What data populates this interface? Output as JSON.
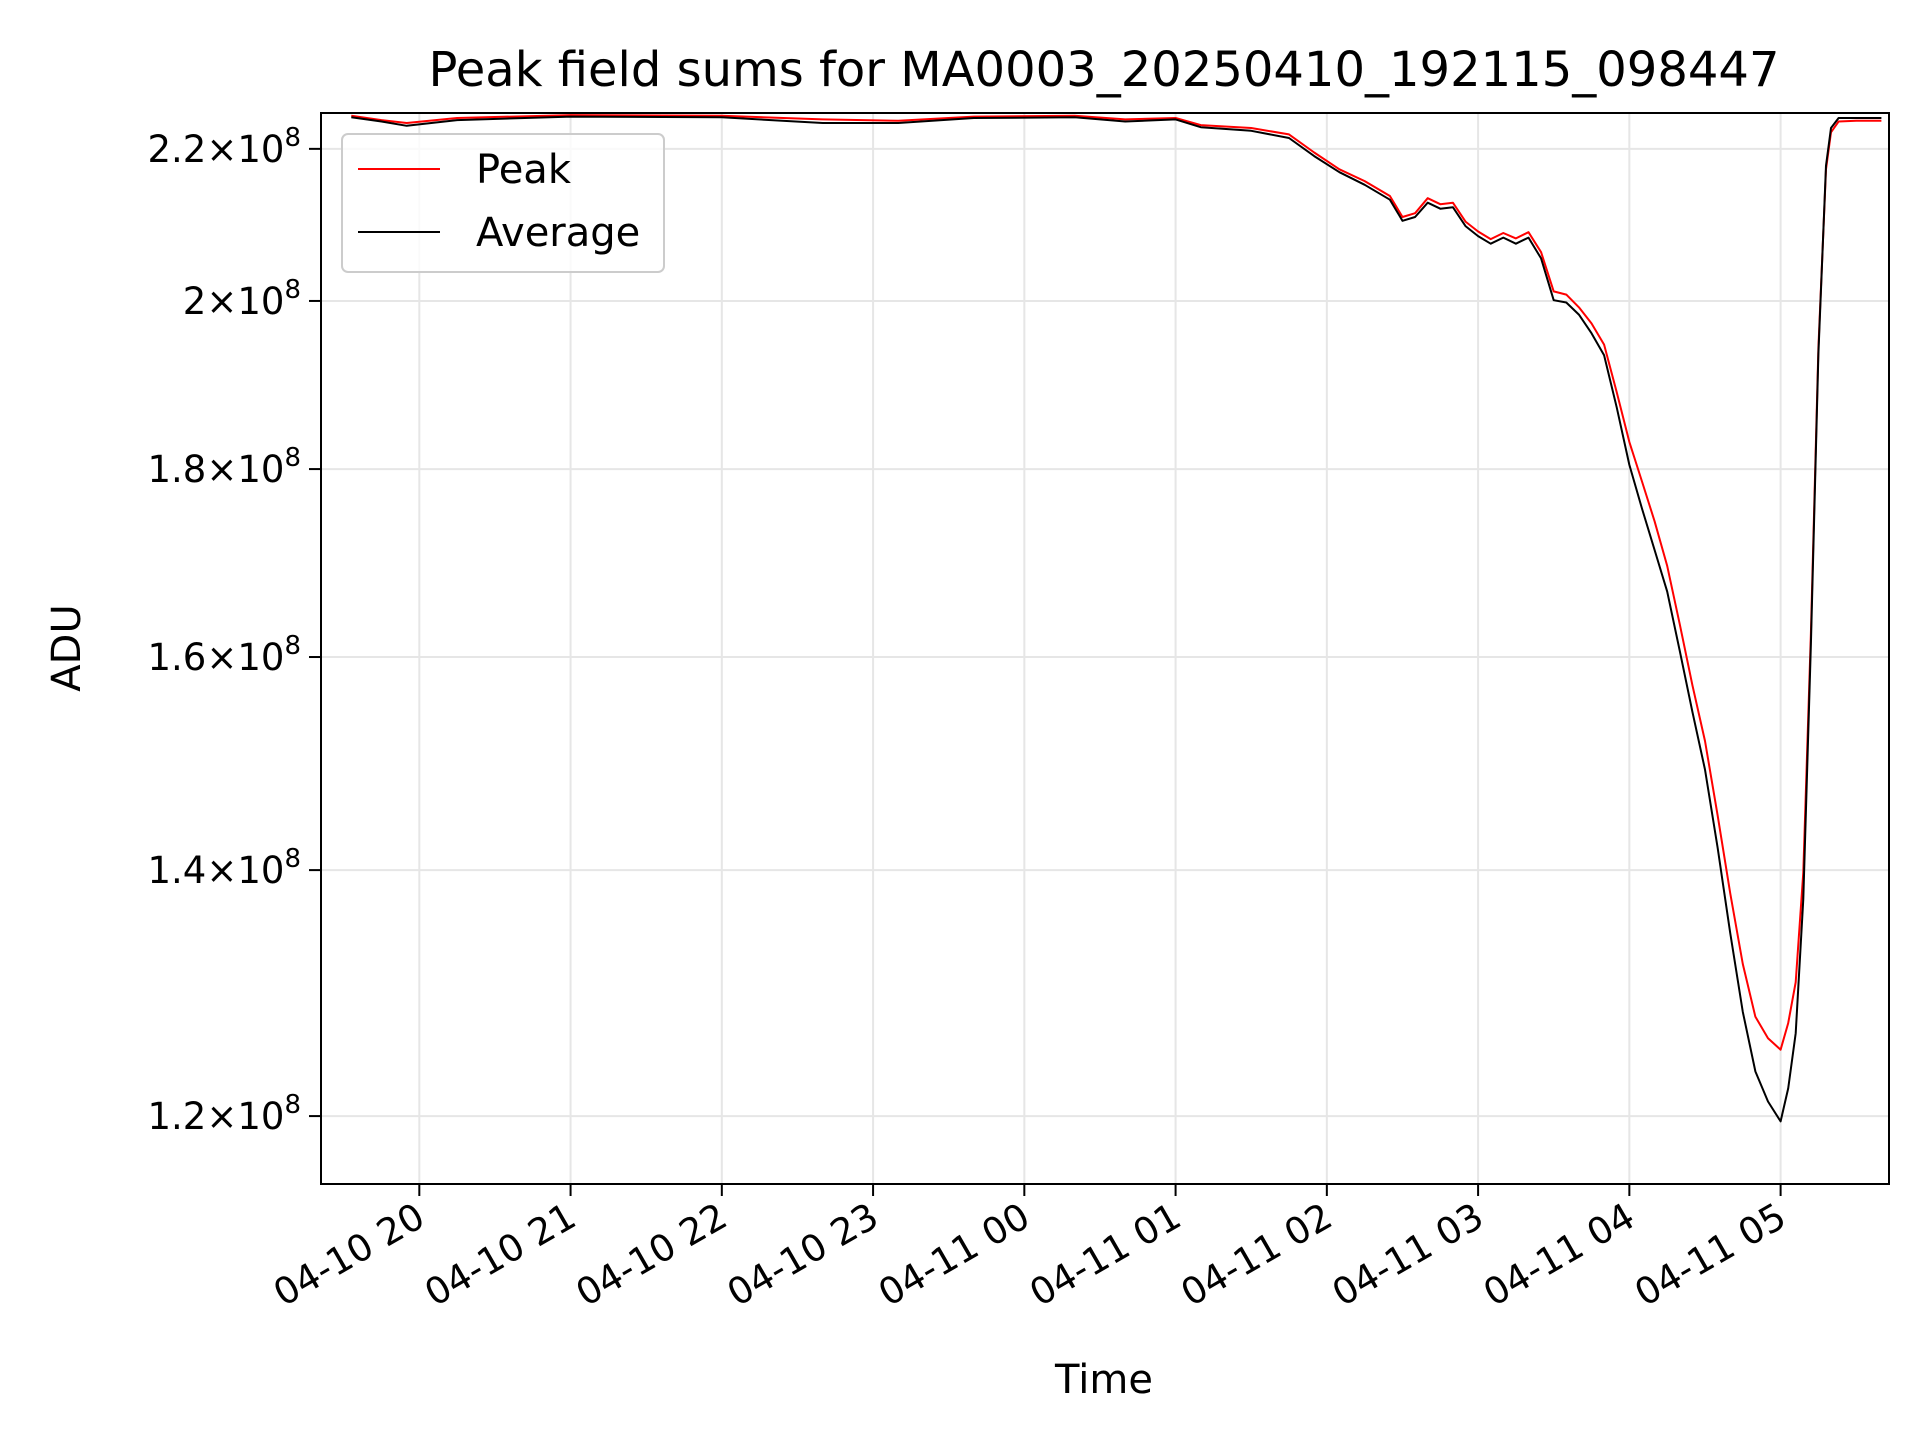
{
  "chart_data": {
    "type": "line",
    "title": "Peak field sums for MA0003_20250410_192115_098447",
    "xlabel": "Time",
    "ylabel": "ADU",
    "y_scale": "log",
    "ylim": [
      115000000,
      225000000
    ],
    "xlim": [
      "2025-04-10 19:21",
      "2025-04-11 05:43"
    ],
    "grid": true,
    "legend_position": "upper-left",
    "x_ticks": [
      {
        "value": "2025-04-10 20:00",
        "label": "04-10 20"
      },
      {
        "value": "2025-04-10 21:00",
        "label": "04-10 21"
      },
      {
        "value": "2025-04-10 22:00",
        "label": "04-10 22"
      },
      {
        "value": "2025-04-10 23:00",
        "label": "04-10 23"
      },
      {
        "value": "2025-04-11 00:00",
        "label": "04-11 00"
      },
      {
        "value": "2025-04-11 01:00",
        "label": "04-11 01"
      },
      {
        "value": "2025-04-11 02:00",
        "label": "04-11 02"
      },
      {
        "value": "2025-04-11 03:00",
        "label": "04-11 03"
      },
      {
        "value": "2025-04-11 04:00",
        "label": "04-11 04"
      },
      {
        "value": "2025-04-11 05:00",
        "label": "04-11 05"
      }
    ],
    "y_ticks": [
      {
        "value": 120000000,
        "mantissa": "1.2",
        "base": "10",
        "exp": "8"
      },
      {
        "value": 140000000,
        "mantissa": "1.4",
        "base": "10",
        "exp": "8"
      },
      {
        "value": 160000000,
        "mantissa": "1.6",
        "base": "10",
        "exp": "8"
      },
      {
        "value": 180000000,
        "mantissa": "1.8",
        "base": "10",
        "exp": "8"
      },
      {
        "value": 200000000,
        "mantissa": "2",
        "base": "10",
        "exp": "8"
      },
      {
        "value": 220000000,
        "mantissa": "2.2",
        "base": "10",
        "exp": "8"
      }
    ],
    "series": [
      {
        "name": "Peak",
        "color": "#ff0000",
        "points": [
          [
            "2025-04-10 19:33",
            224600000
          ],
          [
            "2025-04-10 19:45",
            224000000
          ],
          [
            "2025-04-10 19:55",
            223600000
          ],
          [
            "2025-04-10 20:15",
            224300000
          ],
          [
            "2025-04-10 21:00",
            224700000
          ],
          [
            "2025-04-10 22:00",
            224600000
          ],
          [
            "2025-04-10 22:40",
            224100000
          ],
          [
            "2025-04-10 23:10",
            223900000
          ],
          [
            "2025-04-10 23:40",
            224500000
          ],
          [
            "2025-04-11 00:20",
            224600000
          ],
          [
            "2025-04-11 00:40",
            224100000
          ],
          [
            "2025-04-11 01:00",
            224300000
          ],
          [
            "2025-04-11 01:10",
            223300000
          ],
          [
            "2025-04-11 01:30",
            222900000
          ],
          [
            "2025-04-11 01:45",
            222000000
          ],
          [
            "2025-04-11 01:55",
            219500000
          ],
          [
            "2025-04-11 02:05",
            217200000
          ],
          [
            "2025-04-11 02:15",
            215600000
          ],
          [
            "2025-04-11 02:25",
            213600000
          ],
          [
            "2025-04-11 02:30",
            210800000
          ],
          [
            "2025-04-11 02:35",
            211300000
          ],
          [
            "2025-04-11 02:40",
            213300000
          ],
          [
            "2025-04-11 02:45",
            212500000
          ],
          [
            "2025-04-11 02:50",
            212700000
          ],
          [
            "2025-04-11 02:55",
            210200000
          ],
          [
            "2025-04-11 03:00",
            208900000
          ],
          [
            "2025-04-11 03:05",
            207900000
          ],
          [
            "2025-04-11 03:10",
            208700000
          ],
          [
            "2025-04-11 03:15",
            208000000
          ],
          [
            "2025-04-11 03:20",
            208800000
          ],
          [
            "2025-04-11 03:25",
            206200000
          ],
          [
            "2025-04-11 03:30",
            201200000
          ],
          [
            "2025-04-11 03:35",
            200800000
          ],
          [
            "2025-04-11 03:40",
            199200000
          ],
          [
            "2025-04-11 03:45",
            197200000
          ],
          [
            "2025-04-11 03:50",
            194600000
          ],
          [
            "2025-04-11 03:55",
            188900000
          ],
          [
            "2025-04-11 04:00",
            183100000
          ],
          [
            "2025-04-11 04:05",
            178600000
          ],
          [
            "2025-04-11 04:10",
            174200000
          ],
          [
            "2025-04-11 04:15",
            169400000
          ],
          [
            "2025-04-11 04:20",
            163300000
          ],
          [
            "2025-04-11 04:25",
            157200000
          ],
          [
            "2025-04-11 04:30",
            151800000
          ],
          [
            "2025-04-11 04:35",
            144900000
          ],
          [
            "2025-04-11 04:40",
            138000000
          ],
          [
            "2025-04-11 04:45",
            132000000
          ],
          [
            "2025-04-11 04:50",
            127700000
          ],
          [
            "2025-04-11 04:55",
            126000000
          ],
          [
            "2025-04-11 05:00",
            125100000
          ],
          [
            "2025-04-11 05:03",
            127200000
          ],
          [
            "2025-04-11 05:06",
            130500000
          ],
          [
            "2025-04-11 05:09",
            139800000
          ],
          [
            "2025-04-11 05:12",
            162400000
          ],
          [
            "2025-04-11 05:15",
            194200000
          ],
          [
            "2025-04-11 05:18",
            217200000
          ],
          [
            "2025-04-11 05:20",
            222300000
          ],
          [
            "2025-04-11 05:23",
            223800000
          ],
          [
            "2025-04-11 05:30",
            223900000
          ],
          [
            "2025-04-11 05:40",
            223900000
          ]
        ]
      },
      {
        "name": "Average",
        "color": "#000000",
        "points": [
          [
            "2025-04-10 19:33",
            224400000
          ],
          [
            "2025-04-10 19:45",
            223800000
          ],
          [
            "2025-04-10 19:55",
            223200000
          ],
          [
            "2025-04-10 20:15",
            224000000
          ],
          [
            "2025-04-10 21:00",
            224500000
          ],
          [
            "2025-04-10 22:00",
            224400000
          ],
          [
            "2025-04-10 22:40",
            223600000
          ],
          [
            "2025-04-10 23:10",
            223600000
          ],
          [
            "2025-04-10 23:40",
            224300000
          ],
          [
            "2025-04-11 00:20",
            224400000
          ],
          [
            "2025-04-11 00:40",
            223800000
          ],
          [
            "2025-04-11 01:00",
            224100000
          ],
          [
            "2025-04-11 01:10",
            223000000
          ],
          [
            "2025-04-11 01:30",
            222500000
          ],
          [
            "2025-04-11 01:45",
            221500000
          ],
          [
            "2025-04-11 01:55",
            219000000
          ],
          [
            "2025-04-11 02:05",
            216800000
          ],
          [
            "2025-04-11 02:15",
            215100000
          ],
          [
            "2025-04-11 02:25",
            213100000
          ],
          [
            "2025-04-11 02:30",
            210300000
          ],
          [
            "2025-04-11 02:35",
            210800000
          ],
          [
            "2025-04-11 02:40",
            212700000
          ],
          [
            "2025-04-11 02:45",
            211900000
          ],
          [
            "2025-04-11 02:50",
            212100000
          ],
          [
            "2025-04-11 02:55",
            209600000
          ],
          [
            "2025-04-11 03:00",
            208300000
          ],
          [
            "2025-04-11 03:05",
            207300000
          ],
          [
            "2025-04-11 03:10",
            208100000
          ],
          [
            "2025-04-11 03:15",
            207300000
          ],
          [
            "2025-04-11 03:20",
            208100000
          ],
          [
            "2025-04-11 03:25",
            205400000
          ],
          [
            "2025-04-11 03:30",
            200100000
          ],
          [
            "2025-04-11 03:35",
            199800000
          ],
          [
            "2025-04-11 03:40",
            198300000
          ],
          [
            "2025-04-11 03:45",
            196000000
          ],
          [
            "2025-04-11 03:50",
            193300000
          ],
          [
            "2025-04-11 03:55",
            187100000
          ],
          [
            "2025-04-11 04:00",
            180500000
          ],
          [
            "2025-04-11 04:05",
            175600000
          ],
          [
            "2025-04-11 04:10",
            171100000
          ],
          [
            "2025-04-11 04:15",
            166700000
          ],
          [
            "2025-04-11 04:20",
            160600000
          ],
          [
            "2025-04-11 04:25",
            154600000
          ],
          [
            "2025-04-11 04:30",
            149100000
          ],
          [
            "2025-04-11 04:35",
            142000000
          ],
          [
            "2025-04-11 04:40",
            134600000
          ],
          [
            "2025-04-11 04:45",
            128100000
          ],
          [
            "2025-04-11 04:50",
            123400000
          ],
          [
            "2025-04-11 04:55",
            121100000
          ],
          [
            "2025-04-11 05:00",
            119600000
          ],
          [
            "2025-04-11 05:03",
            122100000
          ],
          [
            "2025-04-11 05:06",
            126400000
          ],
          [
            "2025-04-11 05:09",
            137500000
          ],
          [
            "2025-04-11 05:12",
            161300000
          ],
          [
            "2025-04-11 05:15",
            193500000
          ],
          [
            "2025-04-11 05:18",
            217700000
          ],
          [
            "2025-04-11 05:20",
            222900000
          ],
          [
            "2025-04-11 05:23",
            224300000
          ],
          [
            "2025-04-11 05:30",
            224300000
          ],
          [
            "2025-04-11 05:40",
            224300000
          ]
        ]
      }
    ]
  }
}
